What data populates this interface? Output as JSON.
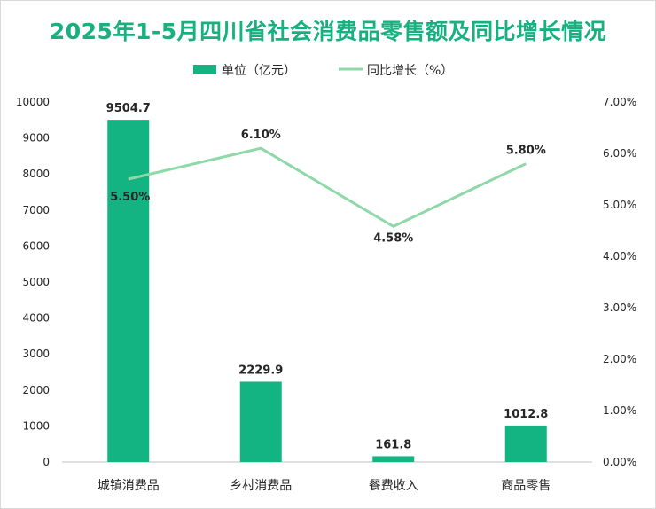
{
  "colors": {
    "title": "#17b07f",
    "bar": "#13b482",
    "line": "#8fd9a8",
    "axis": "#bfbfbf"
  },
  "chart_data": {
    "type": "bar",
    "title": "2025年1-5月四川省社会消费品零售额及同比增长情况",
    "categories": [
      "城镇消费品",
      "乡村消费品",
      "餐费收入",
      "商品零售"
    ],
    "series": [
      {
        "name": "单位（亿元）",
        "type": "bar",
        "axis": "left",
        "values": [
          9504.7,
          2229.9,
          161.8,
          1012.8
        ],
        "labels": [
          "9504.7",
          "2229.9",
          "161.8",
          "1012.8"
        ]
      },
      {
        "name": "同比增长（%）",
        "type": "line",
        "axis": "right",
        "values": [
          5.5,
          6.1,
          4.58,
          5.8
        ],
        "labels": [
          "5.50%",
          "6.10%",
          "4.58%",
          "5.80%"
        ]
      }
    ],
    "y_left": {
      "min": 0,
      "max": 10000,
      "step": 1000,
      "ticks": [
        "0",
        "1000",
        "2000",
        "3000",
        "4000",
        "5000",
        "6000",
        "7000",
        "8000",
        "9000",
        "10000"
      ]
    },
    "y_right": {
      "min": 0,
      "max": 7,
      "step": 1,
      "ticks": [
        "0.00%",
        "1.00%",
        "2.00%",
        "3.00%",
        "4.00%",
        "5.00%",
        "6.00%",
        "7.00%"
      ]
    },
    "legend_position": "top-center",
    "grid": false
  }
}
